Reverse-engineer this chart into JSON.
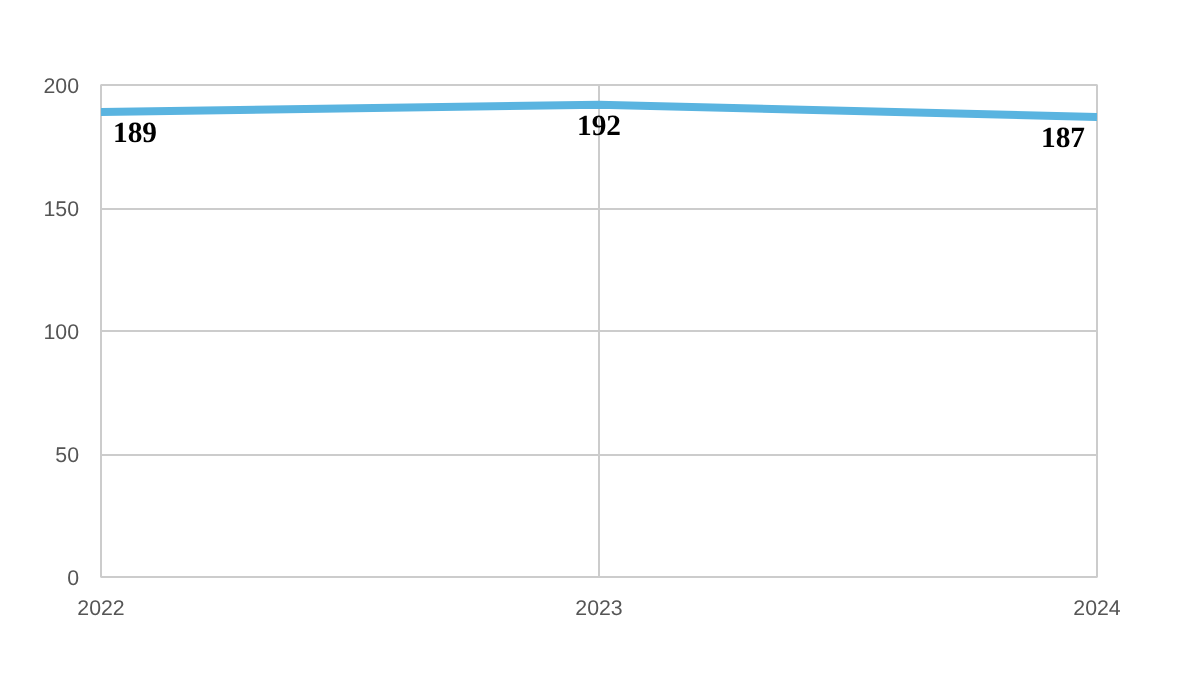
{
  "chart_data": {
    "type": "line",
    "x": [
      2022,
      2023,
      2024
    ],
    "series": [
      {
        "color": "#5ab4e0",
        "values": [
          189,
          192,
          187
        ]
      }
    ],
    "xlim": [
      2022,
      2024
    ],
    "xticks": [
      2022,
      2023,
      2024
    ],
    "ylim": [
      0,
      200
    ],
    "yticks": [
      0,
      50,
      100,
      150,
      200
    ],
    "grid": true,
    "data_labels": true,
    "marker": "none",
    "line_style": "solid"
  }
}
